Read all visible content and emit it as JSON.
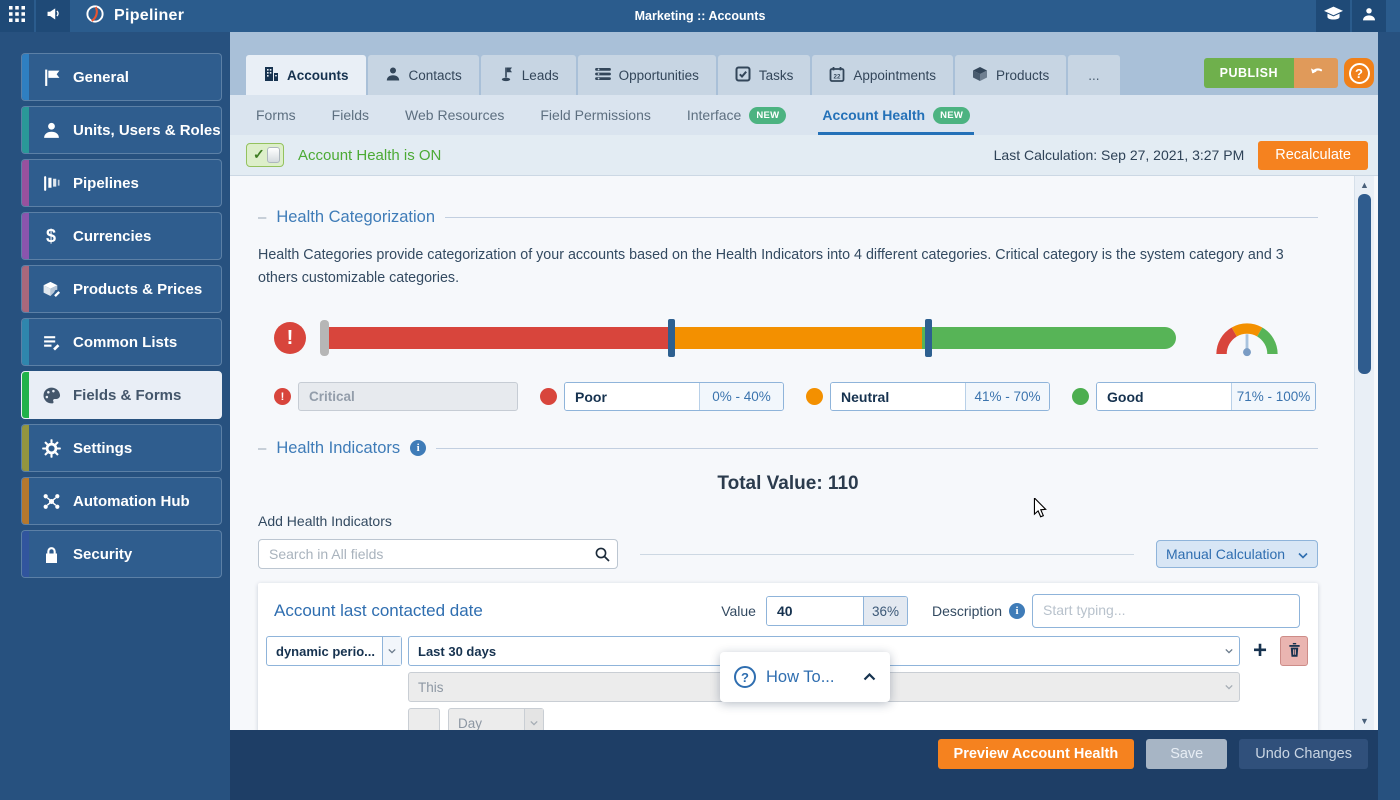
{
  "topbar": {
    "brand": "Pipeliner",
    "title": "Marketing :: Accounts"
  },
  "sidebar": {
    "items": [
      {
        "label": "General",
        "accent": "#2f7fc1"
      },
      {
        "label": "Units, Users & Roles",
        "accent": "#2a9898"
      },
      {
        "label": "Pipelines",
        "accent": "#97519e"
      },
      {
        "label": "Currencies",
        "accent": "#8a55ad"
      },
      {
        "label": "Products & Prices",
        "accent": "#a8687c"
      },
      {
        "label": "Common Lists",
        "accent": "#2f86ad"
      },
      {
        "label": "Fields & Forms",
        "accent": "#21b24a"
      },
      {
        "label": "Settings",
        "accent": "#93953f"
      },
      {
        "label": "Automation Hub",
        "accent": "#b5782e"
      },
      {
        "label": "Security",
        "accent": "#31559e"
      }
    ]
  },
  "tabs": {
    "items": [
      "Accounts",
      "Contacts",
      "Leads",
      "Opportunities",
      "Tasks",
      "Appointments",
      "Products",
      "..."
    ],
    "publish": "PUBLISH"
  },
  "subtabs": {
    "items": [
      "Forms",
      "Fields",
      "Web Resources",
      "Field Permissions",
      "Interface",
      "Account Health"
    ],
    "new_badge": "NEW"
  },
  "status": {
    "toggle_label": "Account Health is ON",
    "toggle_check": "✓",
    "last_calculation": "Last Calculation: Sep 27, 2021, 3:27 PM",
    "recalculate": "Recalculate"
  },
  "categorization": {
    "title": "Health Categorization",
    "description": "Health Categories provide categorization of your accounts based on the Health Indicators into 4 different categories. Critical category is the system category and 3 others customizable categories.",
    "slider": {
      "segments": [
        {
          "color": "#d8453c",
          "width": "40%"
        },
        {
          "color": "#f39000",
          "width": "30%"
        },
        {
          "color": "#57b457",
          "width": "30%"
        }
      ]
    },
    "categories": [
      {
        "name": "Critical",
        "color": "#d8453c"
      },
      {
        "name": "Poor",
        "range": "0% - 40%",
        "color": "#d8453c"
      },
      {
        "name": "Neutral",
        "range": "41% - 70%",
        "color": "#f39000"
      },
      {
        "name": "Good",
        "range": "71% - 100%",
        "color": "#4cae4f"
      }
    ]
  },
  "indicators": {
    "title": "Health Indicators",
    "total_value": "Total Value: 110",
    "add_label": "Add Health Indicators",
    "search_placeholder": "Search in All fields",
    "calculation_mode": "Manual Calculation",
    "card": {
      "name": "Account last contacted date",
      "value_label": "Value",
      "value": "40",
      "percent": "36%",
      "description_label": "Description",
      "description_placeholder": "Start typing...",
      "field_type": "dynamic perio...",
      "condition": "Last 30 days",
      "disabled_condition": "This",
      "unit": "Day"
    }
  },
  "howto": {
    "label": "How To..."
  },
  "footer": {
    "preview": "Preview Account Health",
    "save": "Save",
    "undo": "Undo Changes"
  }
}
